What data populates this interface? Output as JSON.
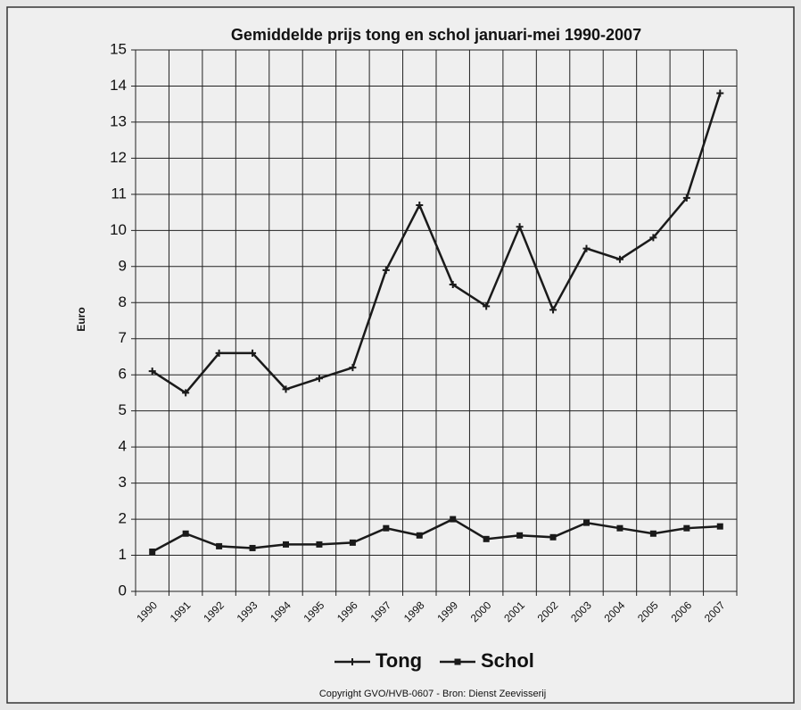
{
  "chart_data": {
    "type": "line",
    "title": "Gemiddelde prijs tong en schol januari-mei 1990-2007",
    "y_label": "Euro",
    "footnote": "Copyright GVO/HVB-0607 - Bron: Dienst Zeevisserij",
    "categories": [
      "1990",
      "1991",
      "1992",
      "1993",
      "1994",
      "1995",
      "1996",
      "1997",
      "1998",
      "1999",
      "2000",
      "2001",
      "2002",
      "2003",
      "2004",
      "2005",
      "2006",
      "2007"
    ],
    "series": [
      {
        "name": "Tong",
        "color": "#1a1a1a",
        "marker": "plus",
        "values": [
          6.1,
          5.5,
          6.6,
          6.6,
          5.6,
          5.9,
          6.2,
          8.9,
          10.7,
          8.5,
          7.9,
          10.1,
          7.8,
          9.5,
          9.2,
          9.8,
          10.9,
          13.8
        ]
      },
      {
        "name": "Schol",
        "color": "#1a1a1a",
        "marker": "square",
        "values": [
          1.1,
          1.6,
          1.25,
          1.2,
          1.3,
          1.3,
          1.35,
          1.75,
          1.55,
          2.0,
          1.45,
          1.55,
          1.5,
          1.9,
          1.75,
          1.6,
          1.75,
          1.8
        ]
      }
    ],
    "ylim": [
      0,
      15
    ],
    "yticks": [
      0,
      1,
      2,
      3,
      4,
      5,
      6,
      7,
      8,
      9,
      10,
      11,
      12,
      13,
      14,
      15
    ],
    "grid": true,
    "legend": "bottom"
  }
}
